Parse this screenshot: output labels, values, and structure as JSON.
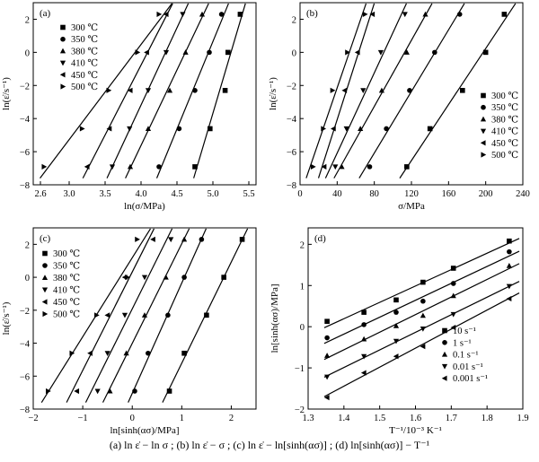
{
  "caption": "(a)  ln ε̇ − ln σ ;  (b)  ln ε̇ − σ ;  (c)  ln ε̇ − ln[sinh(ασ)] ;  (d)  ln[sinh(ασ)] − T⁻¹",
  "chart_data": [
    {
      "panel": "(a)",
      "type": "scatter",
      "xlabel": "ln(σ/MPa)",
      "ylabel": "ln(ε̇/s⁻¹)",
      "xlim": [
        2.5,
        5.6
      ],
      "ylim": [
        -8,
        3
      ],
      "xticks": [
        2.6,
        3.0,
        3.5,
        4.0,
        4.5,
        5.0,
        5.5
      ],
      "xtick_labels": [
        "2.6",
        "3.0",
        "3.5",
        "4.0",
        "4.5",
        "5.0",
        "5.5"
      ],
      "yticks": [
        -8,
        -6,
        -4,
        -2,
        0,
        2
      ],
      "ytick_labels": [
        "−8",
        "−6",
        "−4",
        "−2",
        "0",
        "2"
      ],
      "legend_position": "top-right",
      "fit_lines": true,
      "series": [
        {
          "name": "300 ℃",
          "marker": "square",
          "x": [
            4.75,
            4.96,
            5.17,
            5.21,
            5.38
          ],
          "y": [
            -6.91,
            -4.61,
            -2.3,
            0,
            2.3
          ]
        },
        {
          "name": "350 ℃",
          "marker": "circle",
          "x": [
            4.25,
            4.53,
            4.75,
            4.95,
            5.12
          ],
          "y": [
            -6.91,
            -4.61,
            -2.3,
            0,
            2.3
          ]
        },
        {
          "name": "380 ℃",
          "marker": "triangle-up",
          "x": [
            3.85,
            4.1,
            4.4,
            4.62,
            4.85
          ],
          "y": [
            -6.91,
            -4.61,
            -2.3,
            0,
            2.3
          ]
        },
        {
          "name": "410 ℃",
          "marker": "triangle-down",
          "x": [
            3.6,
            3.84,
            4.1,
            4.35,
            4.58
          ],
          "y": [
            -6.91,
            -4.61,
            -2.3,
            0,
            2.3
          ]
        },
        {
          "name": "450 ℃",
          "marker": "triangle-left",
          "x": [
            3.25,
            3.56,
            3.85,
            4.08,
            4.35
          ],
          "y": [
            -6.91,
            -4.61,
            -2.3,
            0,
            2.3
          ]
        },
        {
          "name": "500 ℃",
          "marker": "triangle-right",
          "x": [
            2.65,
            3.18,
            3.55,
            3.95,
            4.25
          ],
          "y": [
            -6.91,
            -4.61,
            -2.3,
            0,
            2.3
          ]
        }
      ]
    },
    {
      "panel": "(b)",
      "type": "scatter",
      "xlabel": "σ/MPa",
      "ylabel": "ln(ε̇/s⁻¹)",
      "xlim": [
        0,
        240
      ],
      "ylim": [
        -8,
        3
      ],
      "xticks": [
        0,
        40,
        80,
        120,
        160,
        200,
        240
      ],
      "xtick_labels": [
        "0",
        "40",
        "80",
        "120",
        "160",
        "200",
        "240"
      ],
      "yticks": [
        -8,
        -6,
        -4,
        -2,
        0,
        2
      ],
      "ytick_labels": [
        "−8",
        "−6",
        "−4",
        "−2",
        "0",
        "2"
      ],
      "legend_position": "bottom-right",
      "fit_lines": true,
      "series": [
        {
          "name": "300 ℃",
          "marker": "square",
          "x": [
            115,
            140,
            175,
            200,
            220
          ],
          "y": [
            -6.91,
            -4.61,
            -2.3,
            0,
            2.3
          ]
        },
        {
          "name": "350 ℃",
          "marker": "circle",
          "x": [
            75,
            93,
            118,
            145,
            172
          ],
          "y": [
            -6.91,
            -4.61,
            -2.3,
            0,
            2.3
          ]
        },
        {
          "name": "380 ℃",
          "marker": "triangle-up",
          "x": [
            45,
            65,
            88,
            115,
            135
          ],
          "y": [
            -6.91,
            -4.61,
            -2.3,
            0,
            2.3
          ]
        },
        {
          "name": "410 ℃",
          "marker": "triangle-down",
          "x": [
            38,
            50,
            68,
            87,
            113
          ],
          "y": [
            -6.91,
            -4.61,
            -2.3,
            0,
            2.3
          ]
        },
        {
          "name": "450 ℃",
          "marker": "triangle-left",
          "x": [
            26,
            36,
            48,
            62,
            78
          ],
          "y": [
            -6.91,
            -4.61,
            -2.3,
            0,
            2.3
          ]
        },
        {
          "name": "500 ℃",
          "marker": "triangle-right",
          "x": [
            14,
            25,
            35,
            51,
            70
          ],
          "y": [
            -6.91,
            -4.61,
            -2.3,
            0,
            2.3
          ]
        }
      ]
    },
    {
      "panel": "(c)",
      "type": "scatter",
      "xlabel": "ln[sinh(ασ)/MPa]",
      "ylabel": "ln(ε̇/s⁻¹)",
      "xlim": [
        -2,
        2.5
      ],
      "ylim": [
        -8,
        3
      ],
      "xticks": [
        -2,
        -1,
        0,
        1,
        2
      ],
      "xtick_labels": [
        "−2",
        "−1",
        "0",
        "1",
        "2"
      ],
      "yticks": [
        -8,
        -6,
        -4,
        -2,
        0,
        2
      ],
      "ytick_labels": [
        "−8",
        "−6",
        "−4",
        "−2",
        "0",
        "2"
      ],
      "legend_position": "top-left",
      "fit_lines": true,
      "series": [
        {
          "name": "300 ℃",
          "marker": "square",
          "x": [
            0.75,
            1.05,
            1.5,
            1.85,
            2.22
          ],
          "y": [
            -6.91,
            -4.61,
            -2.3,
            0,
            2.3
          ]
        },
        {
          "name": "350 ℃",
          "marker": "circle",
          "x": [
            0.05,
            0.32,
            0.72,
            1.05,
            1.4
          ],
          "y": [
            -6.91,
            -4.61,
            -2.3,
            0,
            2.3
          ]
        },
        {
          "name": "380 ℃",
          "marker": "triangle-up",
          "x": [
            -0.45,
            -0.12,
            0.25,
            0.68,
            1.05
          ],
          "y": [
            -6.91,
            -4.61,
            -2.3,
            0,
            2.3
          ]
        },
        {
          "name": "410 ℃",
          "marker": "triangle-down",
          "x": [
            -0.7,
            -0.5,
            -0.15,
            0.25,
            0.78
          ],
          "y": [
            -6.91,
            -4.61,
            -2.3,
            0,
            2.3
          ]
        },
        {
          "name": "450 ℃",
          "marker": "triangle-left",
          "x": [
            -1.12,
            -0.85,
            -0.5,
            -0.15,
            0.42
          ],
          "y": [
            -6.91,
            -4.61,
            -2.3,
            0,
            2.3
          ]
        },
        {
          "name": "500 ℃",
          "marker": "triangle-right",
          "x": [
            -1.7,
            -1.22,
            -0.72,
            -0.1,
            0.1
          ],
          "y": [
            -6.91,
            -4.61,
            -2.3,
            0,
            2.3
          ]
        }
      ]
    },
    {
      "panel": "(d)",
      "type": "scatter",
      "xlabel": "T⁻¹/10⁻³ K⁻¹",
      "ylabel": "ln[sinh(ασ)/MPa]",
      "xlim": [
        1.3,
        1.9
      ],
      "ylim": [
        -2,
        2.4
      ],
      "xticks": [
        1.3,
        1.4,
        1.5,
        1.6,
        1.7,
        1.8,
        1.9
      ],
      "xtick_labels": [
        "1.3",
        "1.4",
        "1.5",
        "1.6",
        "1.7",
        "1.8",
        "1.9"
      ],
      "yticks": [
        -2,
        -1,
        0,
        1,
        2
      ],
      "ytick_labels": [
        "−2",
        "−1",
        "0",
        "1",
        "2"
      ],
      "legend_position": "bottom-right",
      "fit_lines": true,
      "series": [
        {
          "name": "10 s⁻¹",
          "marker": "square",
          "x": [
            1.353,
            1.456,
            1.546,
            1.621,
            1.706,
            1.862
          ],
          "y": [
            0.13,
            0.35,
            0.65,
            1.08,
            1.42,
            2.08
          ]
        },
        {
          "name": "1 s⁻¹",
          "marker": "circle",
          "x": [
            1.353,
            1.456,
            1.546,
            1.621,
            1.706,
            1.862
          ],
          "y": [
            -0.27,
            0.05,
            0.35,
            0.62,
            1.05,
            1.82
          ]
        },
        {
          "name": "0.1 s⁻¹",
          "marker": "triangle-up",
          "x": [
            1.353,
            1.456,
            1.546,
            1.621,
            1.706,
            1.862
          ],
          "y": [
            -0.7,
            -0.3,
            0.02,
            0.27,
            0.75,
            1.48
          ]
        },
        {
          "name": "0.01 s⁻¹",
          "marker": "triangle-down",
          "x": [
            1.353,
            1.456,
            1.546,
            1.621,
            1.706,
            1.862
          ],
          "y": [
            -1.22,
            -0.72,
            -0.35,
            -0.05,
            0.3,
            0.98
          ]
        },
        {
          "name": "0.001 s⁻¹",
          "marker": "triangle-left",
          "x": [
            1.353,
            1.456,
            1.546,
            1.621,
            1.706,
            1.862
          ],
          "y": [
            -1.72,
            -1.12,
            -0.72,
            -0.48,
            -0.02,
            0.68
          ]
        }
      ]
    }
  ]
}
